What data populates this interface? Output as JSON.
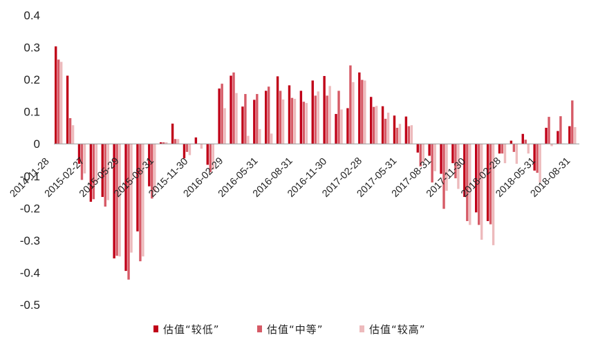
{
  "chart_data": {
    "type": "bar",
    "title": "",
    "xlabel": "",
    "ylabel": "",
    "ylim": [
      -0.5,
      0.4
    ],
    "yticks": [
      0.4,
      0.3,
      0.2,
      0.1,
      0,
      -0.1,
      -0.2,
      -0.3,
      -0.4,
      -0.5
    ],
    "ytick_labels": [
      "0.4",
      "0.3",
      "0.2",
      "0.1",
      "0",
      "-0.1",
      "-0.2",
      "-0.3",
      "-0.4",
      "-0.5"
    ],
    "xtick_labels": [
      "2014-11-28",
      "2015-02-27",
      "2015-05-29",
      "2015-08-31",
      "2015-11-30",
      "2016-02-29",
      "2016-05-31",
      "2016-08-31",
      "2016-11-30",
      "2017-02-28",
      "2017-05-31",
      "2017-08-31",
      "2017-11-30",
      "2018-02-28",
      "2018-05-31",
      "2018-08-31"
    ],
    "grid": false,
    "legend_position": "bottom",
    "series": [
      {
        "name": "估值“较低”",
        "color": "#C00018",
        "values": [
          0.303,
          0.212,
          -0.062,
          -0.18,
          -0.165,
          -0.356,
          -0.395,
          -0.272,
          -0.132,
          0.005,
          0.063,
          -0.045,
          0.02,
          -0.065,
          0.172,
          0.212,
          0.116,
          0.137,
          0.165,
          0.21,
          0.182,
          0.165,
          0.197,
          0.211,
          0.093,
          0.111,
          0.222,
          0.146,
          0.117,
          0.088,
          0.085,
          -0.027,
          -0.037,
          -0.093,
          -0.06,
          -0.165,
          -0.213,
          -0.24,
          -0.03,
          0.01,
          0.031,
          -0.083,
          0.05,
          0.04,
          0.055
        ]
      },
      {
        "name": "估值“中等”",
        "color": "#D65A66",
        "values": [
          0.262,
          0.08,
          -0.112,
          -0.172,
          -0.195,
          -0.348,
          -0.422,
          -0.365,
          -0.17,
          0.005,
          0.015,
          -0.025,
          0.001,
          -0.088,
          0.187,
          0.222,
          0.155,
          0.155,
          0.178,
          0.165,
          0.143,
          0.131,
          0.15,
          0.15,
          0.165,
          0.244,
          0.199,
          0.115,
          0.078,
          0.05,
          0.055,
          -0.07,
          -0.12,
          -0.202,
          -0.107,
          -0.24,
          -0.252,
          -0.25,
          -0.03,
          -0.025,
          0.013,
          -0.09,
          0.084,
          0.086,
          0.135
        ]
      },
      {
        "name": "估值“较高”",
        "color": "#EDBABC",
        "values": [
          0.255,
          0.058,
          -0.092,
          -0.12,
          -0.175,
          -0.35,
          -0.338,
          -0.35,
          -0.15,
          0.005,
          0.015,
          -0.035,
          -0.015,
          -0.08,
          0.111,
          0.158,
          0.025,
          0.046,
          0.032,
          0.138,
          0.14,
          0.127,
          0.163,
          0.18,
          0.107,
          0.192,
          0.197,
          0.118,
          0.097,
          0.062,
          0.058,
          -0.057,
          -0.085,
          -0.146,
          -0.14,
          -0.252,
          -0.298,
          -0.315,
          -0.06,
          -0.062,
          -0.03,
          -0.12,
          -0.007,
          0.001,
          0.052
        ]
      }
    ]
  }
}
